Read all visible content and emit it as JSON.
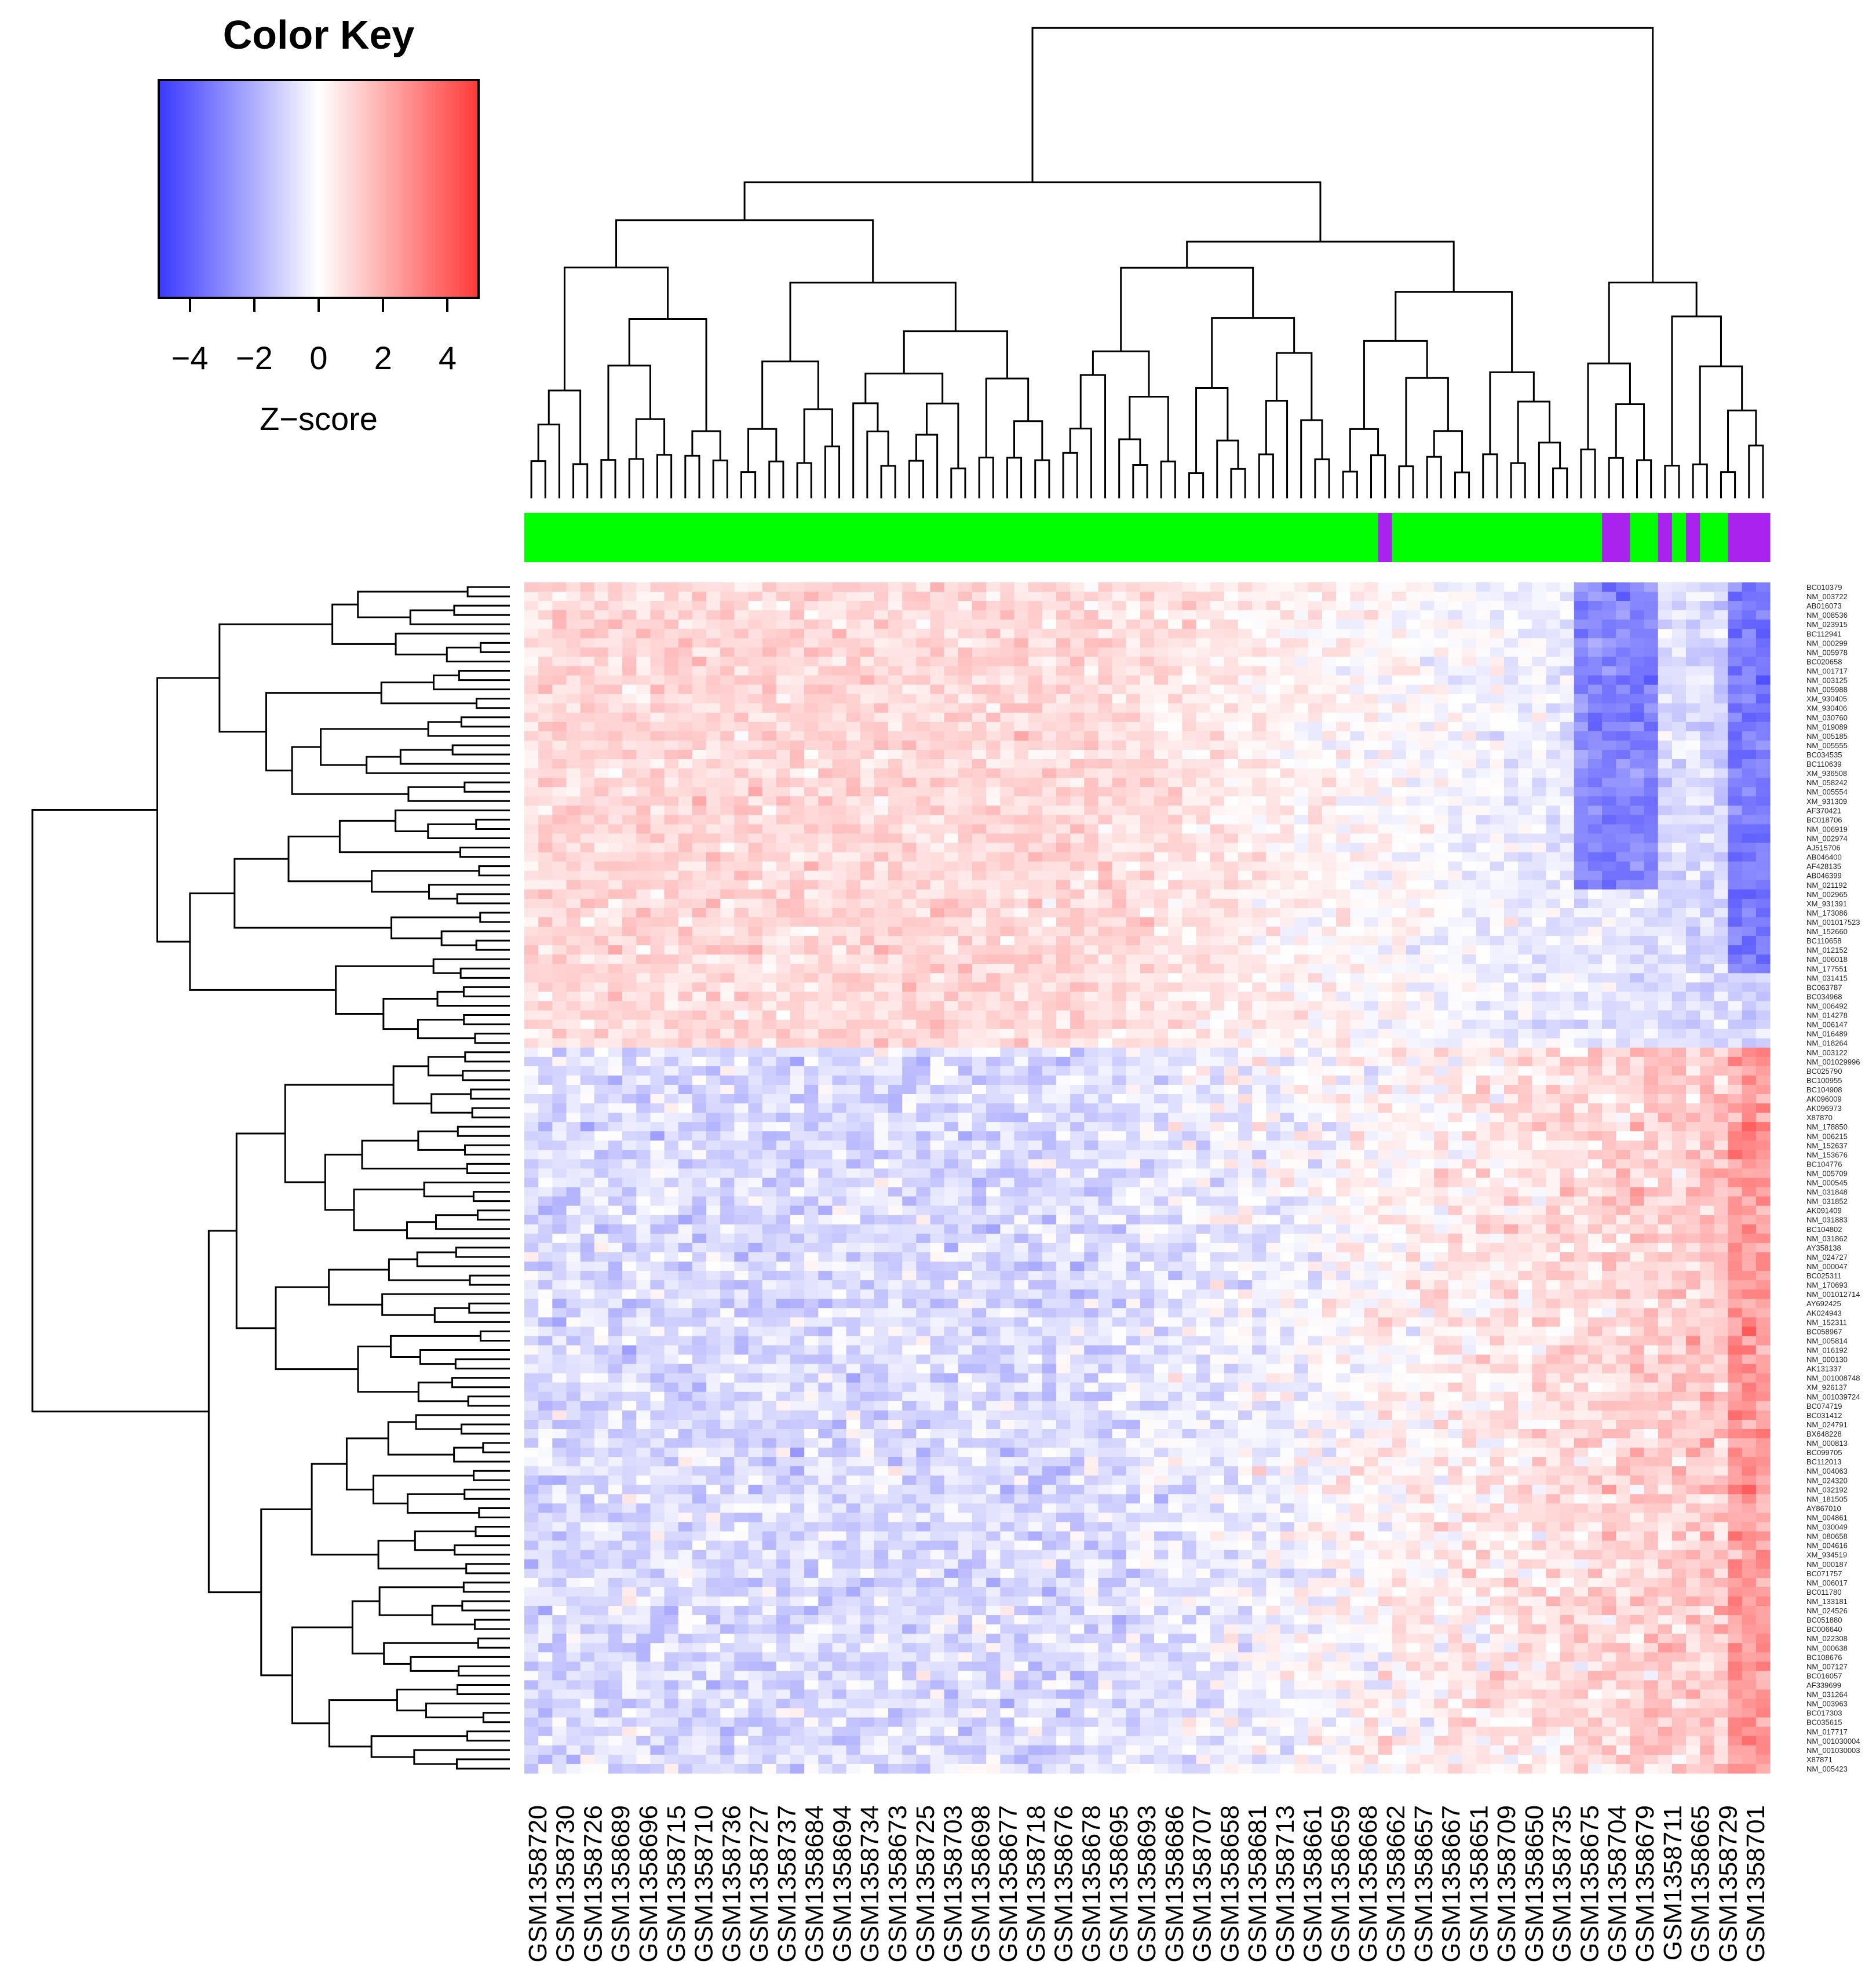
{
  "chart_data": {
    "type": "heatmap",
    "title": "",
    "color_key": {
      "title": "Color Key",
      "xlabel": "Z−score",
      "ticks": [
        -4,
        -2,
        0,
        2,
        4
      ],
      "range": [
        -5,
        5
      ],
      "low_color": "#3a3aff",
      "mid_color": "#ffffff",
      "high_color": "#ff3a3a"
    },
    "group_colors": {
      "a": "#00ff00",
      "b": "#aa22ee"
    },
    "column_groups": [
      "a",
      "a",
      "a",
      "a",
      "a",
      "a",
      "a",
      "a",
      "a",
      "a",
      "a",
      "a",
      "a",
      "a",
      "a",
      "a",
      "a",
      "a",
      "a",
      "a",
      "a",
      "a",
      "a",
      "a",
      "a",
      "a",
      "a",
      "a",
      "a",
      "a",
      "a",
      "a",
      "a",
      "a",
      "a",
      "a",
      "a",
      "a",
      "a",
      "a",
      "a",
      "a",
      "a",
      "a",
      "a",
      "a",
      "a",
      "a",
      "a",
      "a",
      "a",
      "a",
      "a",
      "a",
      "a",
      "a",
      "a",
      "a",
      "a",
      "a",
      "a",
      "b",
      "a",
      "a",
      "a",
      "a",
      "a",
      "a",
      "a",
      "a",
      "a",
      "a",
      "a",
      "a",
      "a",
      "a",
      "a",
      "b",
      "b",
      "a",
      "a",
      "b",
      "a",
      "b",
      "a",
      "a",
      "b",
      "b",
      "b"
    ],
    "column_labels": [
      "GSM1358720",
      "GSM1358730",
      "GSM1358726",
      "GSM1358689",
      "GSM1358696",
      "GSM1358715",
      "GSM1358710",
      "GSM1358736",
      "GSM1358727",
      "GSM1358737",
      "GSM1358684",
      "GSM1358694",
      "GSM1358734",
      "GSM1358673",
      "GSM1358725",
      "GSM1358703",
      "GSM1358698",
      "GSM1358677",
      "GSM1358718",
      "GSM1358676",
      "GSM1358678",
      "GSM1358695",
      "GSM1358693",
      "GSM1358686",
      "GSM1358707",
      "GSM1358658",
      "GSM1358681",
      "GSM1358713",
      "GSM1358661",
      "GSM1358659",
      "GSM1358668",
      "GSM1358662",
      "GSM1358657",
      "GSM1358667",
      "GSM1358651",
      "GSM1358709",
      "GSM1358650",
      "GSM1358735",
      "GSM1358675",
      "GSM1358704",
      "GSM1358679",
      "GSM1358711",
      "GSM1358665",
      "GSM1358729",
      "GSM1358701"
    ],
    "row_labels": [
      "BC010379",
      "NM_003722",
      "AB016073",
      "NM_008536",
      "NM_023915",
      "BC112941",
      "NM_000299",
      "NM_005978",
      "BC020658",
      "NM_001717",
      "NM_003125",
      "NM_005988",
      "XM_930405",
      "XM_930406",
      "NM_030760",
      "NM_019089",
      "NM_005185",
      "NM_005555",
      "BC034535",
      "BC110639",
      "XM_936508",
      "NM_058242",
      "NM_005554",
      "XM_931309",
      "AF370421",
      "BC018706",
      "NM_006919",
      "NM_002974",
      "AJ515706",
      "AB046400",
      "AF428135",
      "AB046399",
      "NM_021192",
      "NM_002965",
      "XM_931391",
      "NM_173086",
      "NM_001017523",
      "NM_152660",
      "BC110658",
      "NM_012152",
      "NM_006018",
      "NM_177551",
      "NM_031415",
      "BC063787",
      "BC034968",
      "NM_006492",
      "NM_014278",
      "NM_006147",
      "NM_016489",
      "NM_018264",
      "NM_003122",
      "NM_001029996",
      "BC025790",
      "BC100955",
      "BC104908",
      "AK096009",
      "AK096973",
      "X87870",
      "NM_178850",
      "NM_006215",
      "NM_152637",
      "NM_153676",
      "BC104776",
      "NM_005709",
      "NM_000545",
      "NM_031848",
      "NM_031852",
      "AK091409",
      "NM_031883",
      "BC104802",
      "NM_031862",
      "AY358138",
      "NM_024727",
      "NM_000047",
      "BC025311",
      "NM_170693",
      "NM_001012714",
      "AY692425",
      "AK024943",
      "NM_152311",
      "BC058967",
      "NM_005814",
      "NM_016192",
      "NM_000130",
      "AK131337",
      "NM_001008748",
      "XM_926137",
      "NM_001039724",
      "BC074719",
      "BC031412",
      "NM_024791",
      "BX648228",
      "NM_000813",
      "BC099705",
      "BC112013",
      "NM_004063",
      "NM_024320",
      "NM_032192",
      "NM_181505",
      "AY867010",
      "NM_004861",
      "NM_030049",
      "NM_080658",
      "NM_004616",
      "XM_934519",
      "NM_000187",
      "BC071757",
      "NM_006017",
      "BC011780",
      "NM_133181",
      "NM_024526",
      "BC051880",
      "BC006640",
      "NM_022308",
      "NM_000638",
      "BC108676",
      "NM_007127",
      "BC016057",
      "AF339699",
      "NM_031264",
      "NM_003963",
      "BC017303",
      "BC035615",
      "NM_017717",
      "NM_001030004",
      "NM_001030003",
      "X87871",
      "NM_005423"
    ],
    "row_clusters": [
      {
        "range": [
          0,
          49
        ],
        "baseline": 0.7
      },
      {
        "range": [
          50,
          128
        ],
        "baseline": -0.6
      }
    ],
    "column_trend": "right-side samples show opposite sign (blue in upper cluster, red in lower cluster)",
    "legend": "top-left"
  }
}
